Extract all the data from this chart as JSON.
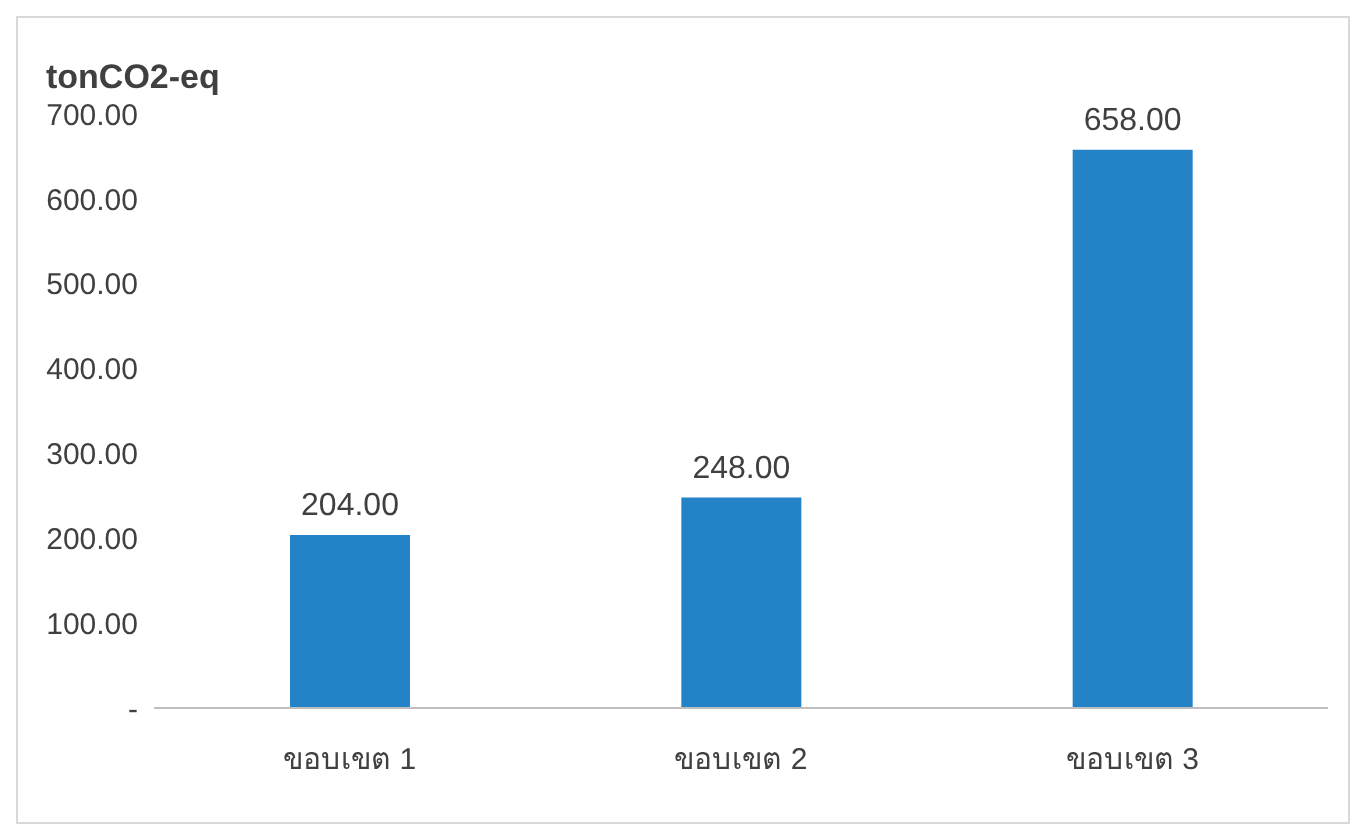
{
  "chart_data": {
    "type": "bar",
    "ylabel": "tonCO2-eq",
    "categories": [
      "ขอบเขต 1",
      "ขอบเขต 2",
      "ขอบเขต 3"
    ],
    "values": [
      204,
      248,
      658
    ],
    "color": "#2383c6",
    "value_labels": [
      "204.00",
      "248.00",
      "658.00"
    ],
    "ylim": [
      0,
      700
    ],
    "yticks": [
      {
        "value": 0,
        "label": "-"
      },
      {
        "value": 100,
        "label": "100.00"
      },
      {
        "value": 200,
        "label": "200.00"
      },
      {
        "value": 300,
        "label": "300.00"
      },
      {
        "value": 400,
        "label": "400.00"
      },
      {
        "value": 500,
        "label": "500.00"
      },
      {
        "value": 600,
        "label": "600.00"
      },
      {
        "value": 700,
        "label": "700.00"
      }
    ],
    "grid": false,
    "legend": false
  }
}
